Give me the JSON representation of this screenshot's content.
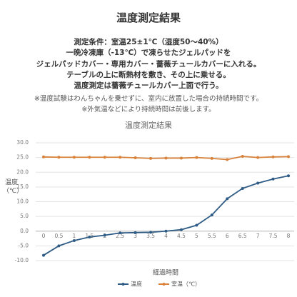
{
  "header": {
    "title": "温度測定結果",
    "conditions": [
      "測定条件：室温25±1℃（湿度50～40%）",
      "一晩冷凍庫（-13℃）で凍らせたジェルパッドを",
      "ジェルパッドカバー・専用カバー・薔薇チュールカバーに入れる。",
      "テーブルの上に断熱材を敷き、その上に乗せる。",
      "温度測定は薔薇チュールカバー上面で行う。"
    ],
    "notes": [
      "※温度試験はわんちゃんを乗せずに、室内に放置した場合の持続時間です。",
      "※外気温などにより持続時間は前後します。"
    ]
  },
  "chart_data": {
    "type": "line",
    "title": "温度測定結果",
    "y_label": "温度（℃）",
    "x_label": "経過時間",
    "categories": [
      "0",
      "0.5",
      "1",
      "1.5",
      "2",
      "2.5",
      "3",
      "3.5",
      "4",
      "4.5",
      "5",
      "5.5",
      "6",
      "6.5",
      "7",
      "7.5",
      "8"
    ],
    "series": [
      {
        "name": "温度",
        "color": "#2e5c86",
        "values": [
          -8.2,
          -5.0,
          -3.2,
          -2.0,
          -1.4,
          -0.6,
          -0.5,
          -0.4,
          0,
          0.5,
          2.0,
          5.5,
          11.0,
          14.5,
          16.3,
          17.7,
          18.8
        ]
      },
      {
        "name": "室温（℃）",
        "color": "#d9823b",
        "values": [
          25.2,
          25.1,
          25.1,
          25.1,
          25.1,
          25.1,
          24.9,
          24.7,
          24.8,
          24.8,
          25.0,
          24.7,
          24.3,
          25.4,
          25.0,
          25.2,
          25.3
        ]
      }
    ],
    "ylim": [
      -10,
      30
    ],
    "yticks": [
      {
        "value": -10,
        "label": "-10.0"
      },
      {
        "value": -5,
        "label": "-5.0"
      },
      {
        "value": 0,
        "label": "0.0"
      },
      {
        "value": 5,
        "label": "5.0"
      },
      {
        "value": 10,
        "label": "10.0"
      },
      {
        "value": 15,
        "label": "15.0"
      },
      {
        "value": 20,
        "label": "20.0"
      },
      {
        "value": 25,
        "label": "25.0"
      },
      {
        "value": 30,
        "label": "30.0"
      }
    ],
    "grid": true,
    "legend": "bottom"
  }
}
